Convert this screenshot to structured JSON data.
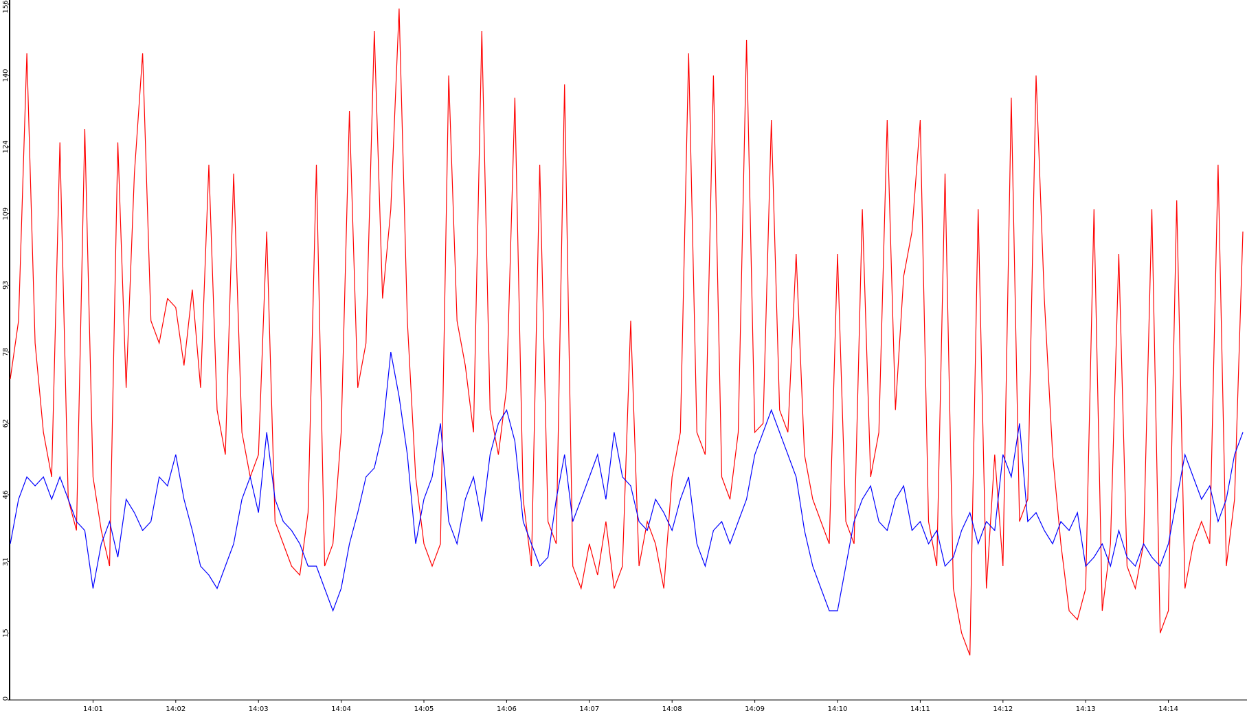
{
  "chart_data": {
    "type": "line",
    "x": [
      0,
      0.1,
      0.2,
      0.3,
      0.4,
      0.5,
      0.6,
      0.7,
      0.8,
      0.9,
      1,
      1.1,
      1.2,
      1.3,
      1.4,
      1.5,
      1.6,
      1.7,
      1.8,
      1.9,
      2,
      2.1,
      2.2,
      2.3,
      2.4,
      2.5,
      2.6,
      2.7,
      2.8,
      2.9,
      3,
      3.1,
      3.2,
      3.3,
      3.4,
      3.5,
      3.6,
      3.7,
      3.8,
      3.9,
      4,
      4.1,
      4.2,
      4.3,
      4.4,
      4.5,
      4.6,
      4.7,
      4.8,
      4.9,
      5,
      5.1,
      5.2,
      5.3,
      5.4,
      5.5,
      5.6,
      5.7,
      5.8,
      5.9,
      6,
      6.1,
      6.2,
      6.3,
      6.4,
      6.5,
      6.6,
      6.7,
      6.8,
      6.9,
      7,
      7.1,
      7.2,
      7.3,
      7.4,
      7.5,
      7.6,
      7.7,
      7.8,
      7.9,
      8,
      8.1,
      8.2,
      8.3,
      8.4,
      8.5,
      8.6,
      8.7,
      8.8,
      8.9,
      9,
      9.1,
      9.2,
      9.3,
      9.4,
      9.5,
      9.6,
      9.7,
      9.8,
      9.9,
      10,
      10.1,
      10.2,
      10.3,
      10.4,
      10.5,
      10.6,
      10.7,
      10.8,
      10.9,
      11,
      11.1,
      11.2,
      11.3,
      11.4,
      11.5,
      11.6,
      11.7,
      11.8,
      11.9,
      12,
      12.1,
      12.2,
      12.3,
      12.4,
      12.5,
      12.6,
      12.7,
      12.8,
      12.9,
      13,
      13.1,
      13.2,
      13.3,
      13.4,
      13.5,
      13.6,
      13.7,
      13.8,
      13.9,
      14,
      14.1,
      14.2,
      14.3,
      14.4,
      14.5,
      14.6,
      14.7,
      14.8,
      14.9
    ],
    "series": [
      {
        "color": "#ff0000",
        "values": [
          72,
          85,
          145,
          80,
          60,
          50,
          125,
          45,
          38,
          128,
          50,
          38,
          30,
          125,
          70,
          118,
          145,
          85,
          80,
          90,
          88,
          75,
          92,
          70,
          120,
          65,
          55,
          118,
          60,
          50,
          55,
          105,
          40,
          35,
          30,
          28,
          42,
          120,
          30,
          35,
          60,
          132,
          70,
          80,
          150,
          90,
          110,
          155,
          85,
          50,
          35,
          30,
          35,
          140,
          85,
          75,
          60,
          150,
          65,
          55,
          70,
          135,
          45,
          30,
          120,
          40,
          35,
          138,
          30,
          25,
          35,
          28,
          40,
          25,
          30,
          85,
          30,
          40,
          35,
          25,
          50,
          60,
          145,
          60,
          55,
          140,
          50,
          45,
          60,
          148,
          60,
          62,
          130,
          65,
          60,
          100,
          55,
          45,
          40,
          35,
          100,
          40,
          35,
          110,
          50,
          60,
          130,
          65,
          95,
          105,
          130,
          40,
          30,
          118,
          25,
          15,
          10,
          110,
          25,
          55,
          30,
          135,
          40,
          45,
          140,
          90,
          55,
          35,
          20,
          18,
          25,
          110,
          20,
          35,
          100,
          30,
          25,
          35,
          110,
          15,
          20,
          112,
          25,
          35,
          40,
          35,
          120,
          30,
          45,
          105
        ]
      },
      {
        "color": "#0000ff",
        "values": [
          35,
          45,
          50,
          48,
          50,
          45,
          50,
          45,
          40,
          38,
          25,
          35,
          40,
          32,
          45,
          42,
          38,
          40,
          50,
          48,
          55,
          45,
          38,
          30,
          28,
          25,
          30,
          35,
          45,
          50,
          42,
          60,
          45,
          40,
          38,
          35,
          30,
          30,
          25,
          20,
          25,
          35,
          42,
          50,
          52,
          60,
          78,
          68,
          55,
          35,
          45,
          50,
          62,
          40,
          35,
          45,
          50,
          40,
          55,
          62,
          65,
          58,
          40,
          35,
          30,
          32,
          45,
          55,
          40,
          45,
          50,
          55,
          45,
          60,
          50,
          48,
          40,
          38,
          45,
          42,
          38,
          45,
          50,
          35,
          30,
          38,
          40,
          35,
          40,
          45,
          55,
          60,
          65,
          60,
          55,
          50,
          38,
          30,
          25,
          20,
          20,
          30,
          40,
          45,
          48,
          40,
          38,
          45,
          48,
          38,
          40,
          35,
          38,
          30,
          32,
          38,
          42,
          35,
          40,
          38,
          55,
          50,
          62,
          40,
          42,
          38,
          35,
          40,
          38,
          42,
          30,
          32,
          35,
          30,
          38,
          32,
          30,
          35,
          32,
          30,
          35,
          45,
          55,
          50,
          45,
          48,
          40,
          45,
          55,
          60
        ]
      }
    ],
    "xlim": [
      0,
      14.95
    ],
    "xticks": [
      {
        "value": 1,
        "label": "14:01"
      },
      {
        "value": 2,
        "label": "14:02"
      },
      {
        "value": 3,
        "label": "14:03"
      },
      {
        "value": 4,
        "label": "14:04"
      },
      {
        "value": 5,
        "label": "14:05"
      },
      {
        "value": 6,
        "label": "14:06"
      },
      {
        "value": 7,
        "label": "14:07"
      },
      {
        "value": 8,
        "label": "14:08"
      },
      {
        "value": 9,
        "label": "14:09"
      },
      {
        "value": 10,
        "label": "14:10"
      },
      {
        "value": 11,
        "label": "14:11"
      },
      {
        "value": 12,
        "label": "14:12"
      },
      {
        "value": 13,
        "label": "14:13"
      },
      {
        "value": 14,
        "label": "14:14"
      }
    ],
    "ylim": [
      0,
      156
    ],
    "yticks": [
      0,
      15,
      31,
      46,
      62,
      78,
      93,
      109,
      124,
      140,
      156
    ]
  }
}
